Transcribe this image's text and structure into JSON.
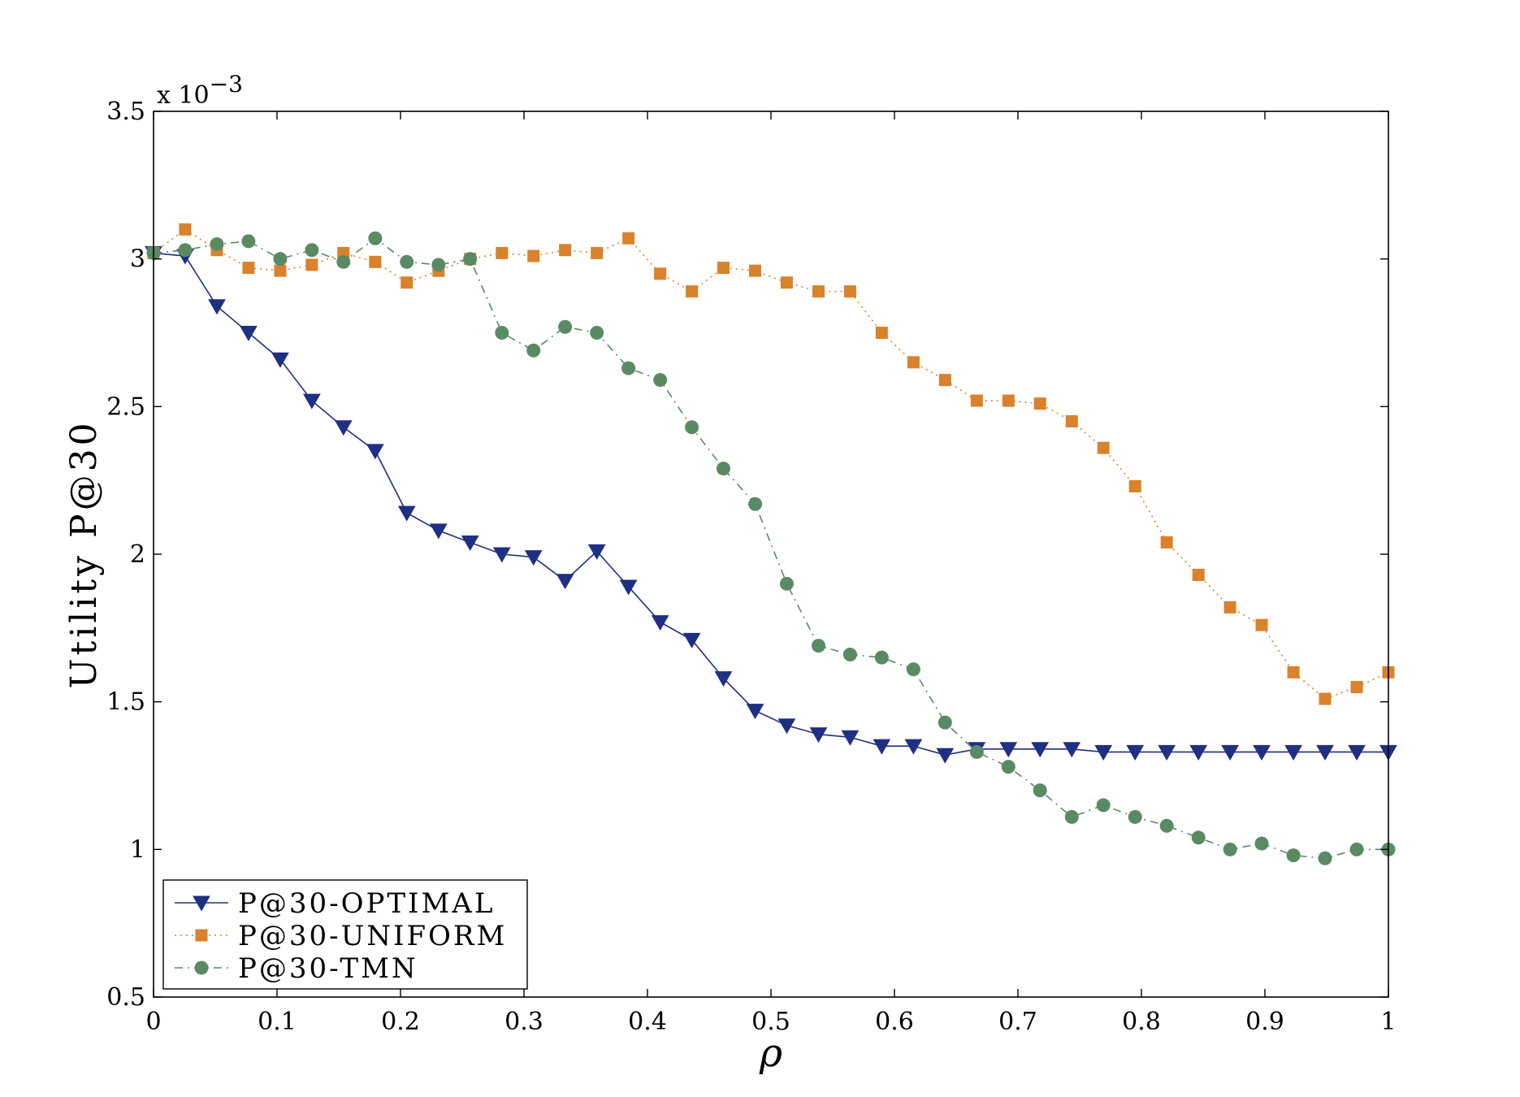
{
  "chart_data": {
    "type": "line",
    "title": "",
    "xlabel": "ρ",
    "ylabel": "Utility P@30",
    "y_multiplier_label": "x 10",
    "y_multiplier_exponent": "−3",
    "xlim": [
      0,
      1
    ],
    "ylim": [
      0.5,
      3.5
    ],
    "x_ticks": [
      0,
      0.1,
      0.2,
      0.3,
      0.4,
      0.5,
      0.6,
      0.7,
      0.8,
      0.9,
      1
    ],
    "x_tick_labels": [
      "0",
      "0.1",
      "0.2",
      "0.3",
      "0.4",
      "0.5",
      "0.6",
      "0.7",
      "0.8",
      "0.9",
      "1"
    ],
    "y_ticks": [
      0.5,
      1,
      1.5,
      2,
      2.5,
      3,
      3.5
    ],
    "y_tick_labels": [
      "0.5",
      "1",
      "1.5",
      "2",
      "2.5",
      "3",
      "3.5"
    ],
    "grid": false,
    "legend_position": "bottom-left",
    "x": [
      0,
      0.0256,
      0.0513,
      0.0769,
      0.1026,
      0.1282,
      0.1538,
      0.1795,
      0.2051,
      0.2308,
      0.2564,
      0.2821,
      0.3077,
      0.3333,
      0.359,
      0.3846,
      0.4103,
      0.4359,
      0.4615,
      0.4872,
      0.5128,
      0.5385,
      0.5641,
      0.5897,
      0.6154,
      0.641,
      0.6667,
      0.6923,
      0.7179,
      0.7436,
      0.7692,
      0.7949,
      0.8205,
      0.8462,
      0.8718,
      0.8974,
      0.9231,
      0.9487,
      0.9744,
      1
    ],
    "series": [
      {
        "name": "P@30-OPTIMAL",
        "color": "#1f2f82",
        "marker": "triangle-down",
        "line_style": "solid",
        "values": [
          3.02,
          3.01,
          2.84,
          2.75,
          2.66,
          2.52,
          2.43,
          2.35,
          2.14,
          2.08,
          2.04,
          2.0,
          1.99,
          1.91,
          2.01,
          1.89,
          1.77,
          1.71,
          1.58,
          1.47,
          1.42,
          1.39,
          1.38,
          1.35,
          1.35,
          1.32,
          1.34,
          1.34,
          1.34,
          1.34,
          1.33,
          1.33,
          1.33,
          1.33,
          1.33,
          1.33,
          1.33,
          1.33,
          1.33,
          1.33
        ]
      },
      {
        "name": "P@30-UNIFORM",
        "color": "#d9822b",
        "marker": "square",
        "line_style": "dotted",
        "values": [
          3.02,
          3.1,
          3.03,
          2.97,
          2.96,
          2.98,
          3.02,
          2.99,
          2.92,
          2.96,
          3.0,
          3.02,
          3.01,
          3.03,
          3.02,
          3.07,
          2.95,
          2.89,
          2.97,
          2.96,
          2.92,
          2.89,
          2.89,
          2.75,
          2.65,
          2.59,
          2.52,
          2.52,
          2.51,
          2.45,
          2.36,
          2.23,
          2.04,
          1.93,
          1.82,
          1.76,
          1.6,
          1.51,
          1.55,
          1.6
        ]
      },
      {
        "name": "P@30-TMN",
        "color": "#5a8a63",
        "marker": "circle",
        "line_style": "dash-dot",
        "values": [
          3.02,
          3.03,
          3.05,
          3.06,
          3.0,
          3.03,
          2.99,
          3.07,
          2.99,
          2.98,
          3.0,
          2.75,
          2.69,
          2.77,
          2.75,
          2.63,
          2.59,
          2.43,
          2.29,
          2.17,
          1.9,
          1.69,
          1.66,
          1.65,
          1.61,
          1.43,
          1.33,
          1.28,
          1.2,
          1.11,
          1.15,
          1.11,
          1.08,
          1.04,
          1.0,
          1.02,
          0.98,
          0.97,
          1.0,
          1.0
        ]
      }
    ]
  }
}
